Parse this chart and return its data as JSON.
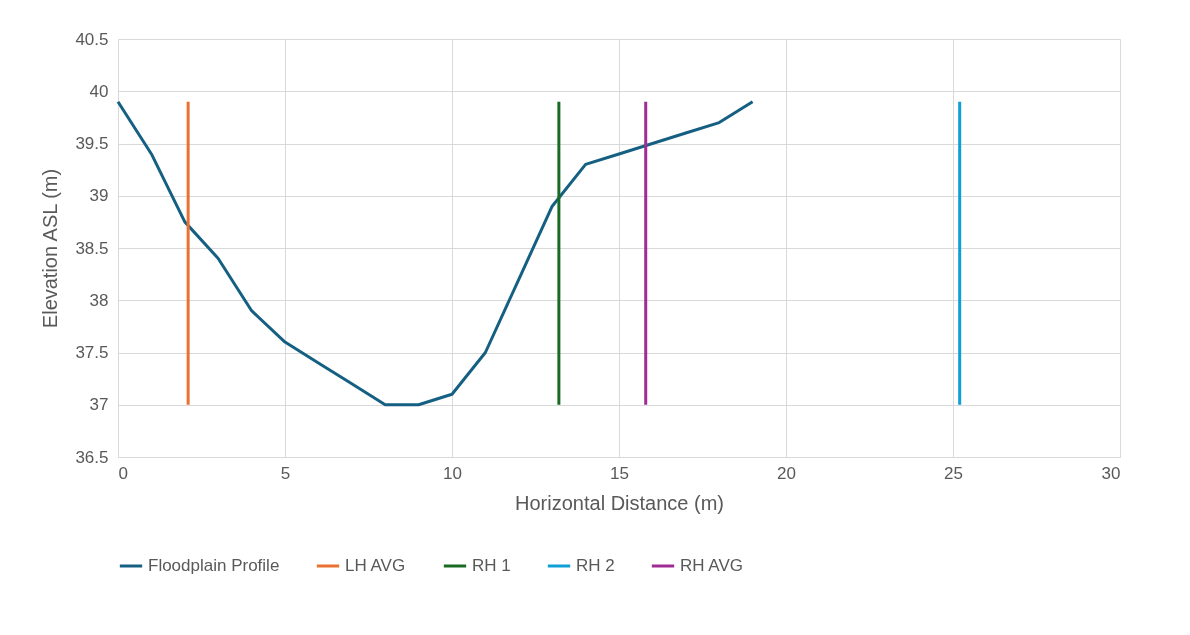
{
  "chart_data": {
    "type": "line",
    "xlabel": "Horizontal Distance (m)",
    "ylabel": "Elevation ASL (m)",
    "xlim": [
      0,
      30
    ],
    "xticks": [
      0,
      5,
      10,
      15,
      20,
      25,
      30
    ],
    "ylim": [
      36.5,
      40.5
    ],
    "yticks": [
      36.5,
      37,
      37.5,
      38,
      38.5,
      39,
      39.5,
      40,
      40.5
    ],
    "grid": true,
    "legend": "bottom",
    "marker": "none",
    "series": [
      {
        "name": "Floodplain Profile",
        "color": "#156082",
        "x": [
          0,
          1,
          2,
          3,
          4,
          5,
          6,
          7,
          8,
          9,
          10,
          11,
          12,
          13,
          14,
          15,
          16,
          17,
          18,
          19
        ],
        "values": [
          39.9,
          39.4,
          38.75,
          38.4,
          37.9,
          37.6,
          37.4,
          37.2,
          37.0,
          37.0,
          37.1,
          37.5,
          38.2,
          38.9,
          39.3,
          39.4,
          39.5,
          39.6,
          39.7,
          39.9
        ]
      },
      {
        "name": "LH AVG",
        "color": "#e97132",
        "x": [
          2.1,
          2.1
        ],
        "values": [
          37.0,
          39.9
        ]
      },
      {
        "name": "RH 1",
        "color": "#196b24",
        "x": [
          13.2,
          13.2
        ],
        "values": [
          37.0,
          39.9
        ]
      },
      {
        "name": "RH 2",
        "color": "#0f9ed5",
        "x": [
          25.2,
          25.2
        ],
        "values": [
          37.0,
          39.9
        ]
      },
      {
        "name": "RH AVG",
        "color": "#a02b93",
        "x": [
          15.8,
          15.8
        ],
        "values": [
          37.0,
          39.9
        ]
      }
    ]
  }
}
